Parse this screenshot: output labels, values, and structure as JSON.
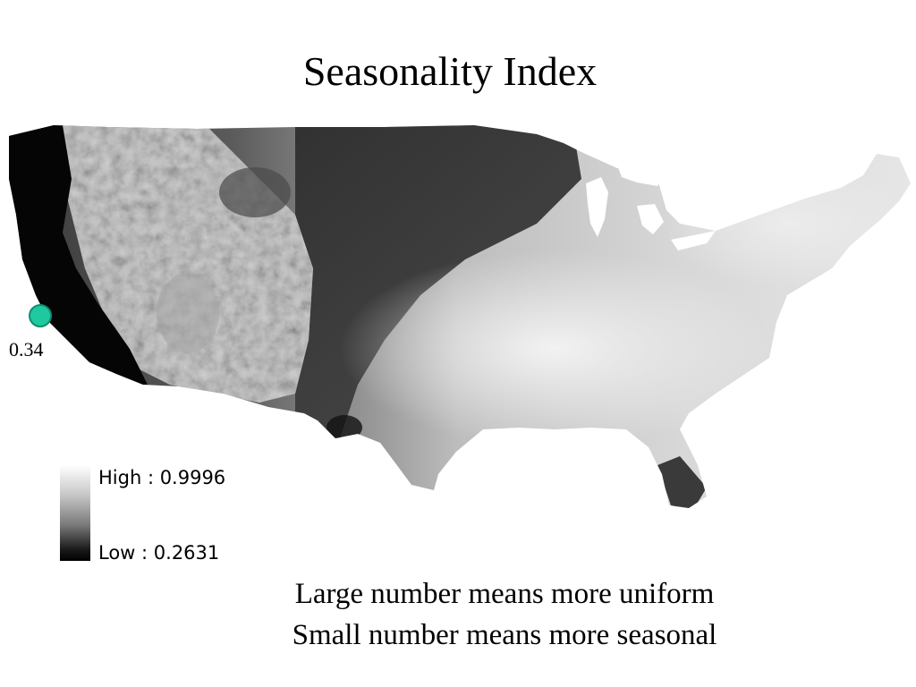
{
  "title": "Seasonality Index",
  "map": {
    "region": "contiguous-united-states",
    "color_scale": "grayscale",
    "low_color": "#000000",
    "high_color": "#ffffff"
  },
  "marker": {
    "label": "0.34",
    "color": "#1fc9a0"
  },
  "legend": {
    "high_label": "High : 0.9996",
    "low_label": "Low : 0.2631",
    "high_value": 0.9996,
    "low_value": 0.2631
  },
  "caption": {
    "line1": "Large number means more uniform",
    "line2": "Small number means more seasonal"
  }
}
